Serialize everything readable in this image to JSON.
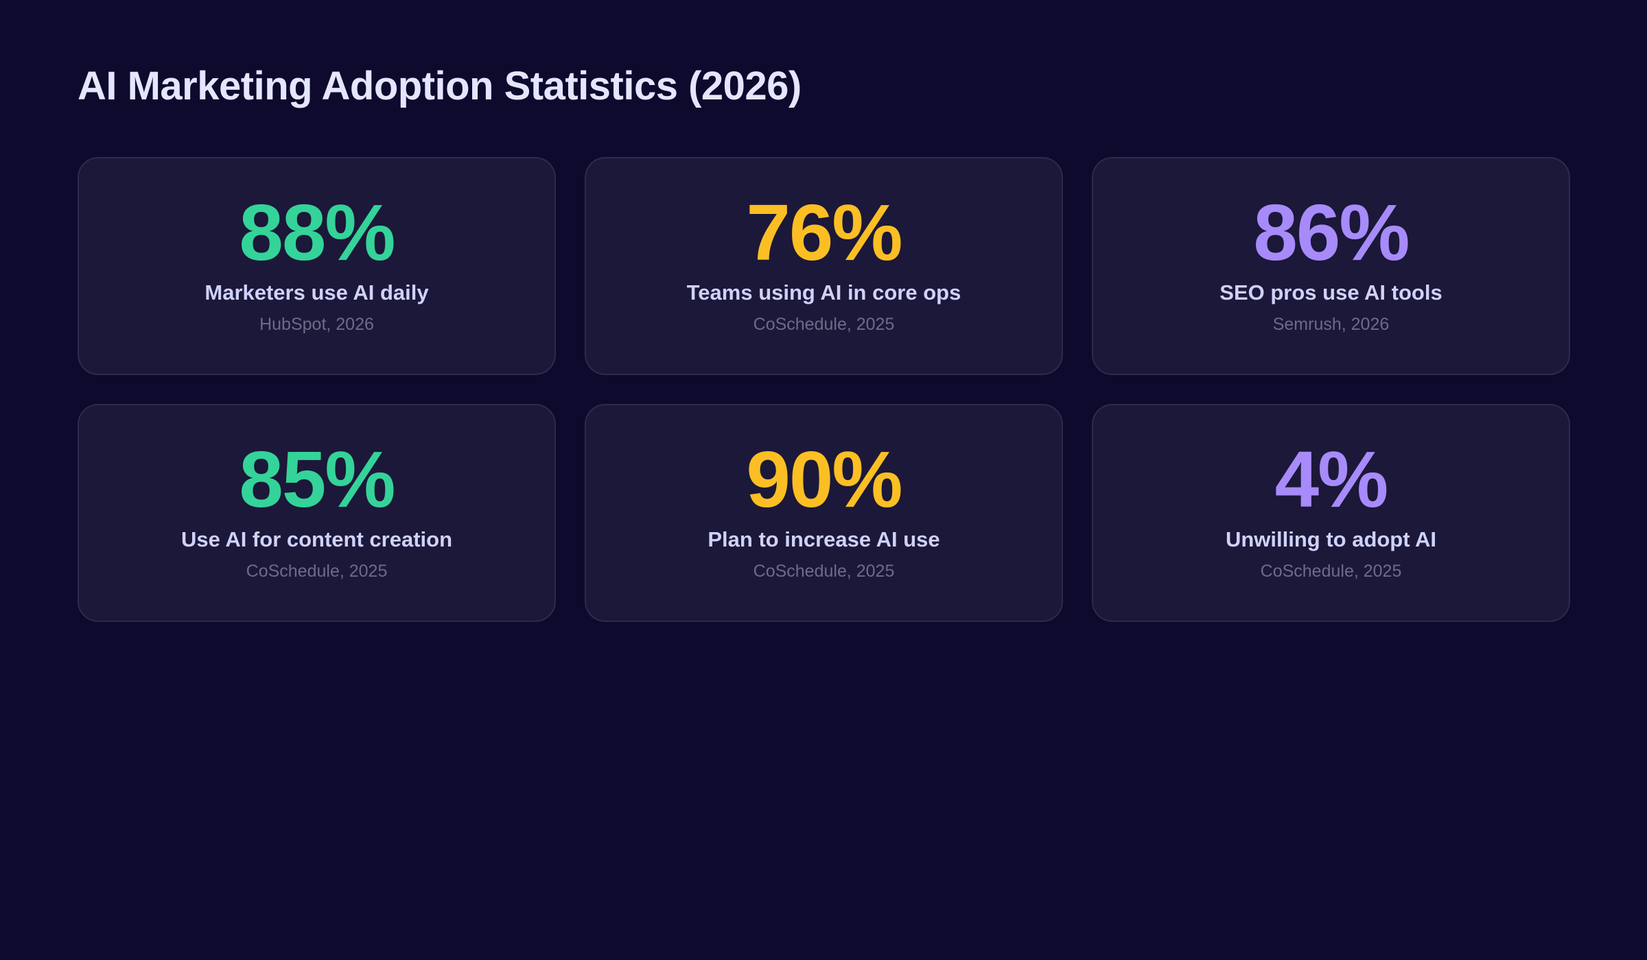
{
  "title": "AI Marketing Adoption Statistics (2026)",
  "colors": {
    "green": "#34d399",
    "yellow": "#fbbf24",
    "purple": "#a78bfa"
  },
  "cards": [
    {
      "value": "88%",
      "label": "Marketers use AI daily",
      "source": "HubSpot, 2026",
      "color": "green"
    },
    {
      "value": "76%",
      "label": "Teams using AI in core ops",
      "source": "CoSchedule, 2025",
      "color": "yellow"
    },
    {
      "value": "86%",
      "label": "SEO pros use AI tools",
      "source": "Semrush, 2026",
      "color": "purple"
    },
    {
      "value": "85%",
      "label": "Use AI for content creation",
      "source": "CoSchedule, 2025",
      "color": "green"
    },
    {
      "value": "90%",
      "label": "Plan to increase AI use",
      "source": "CoSchedule, 2025",
      "color": "yellow"
    },
    {
      "value": "4%",
      "label": "Unwilling to adopt AI",
      "source": "CoSchedule, 2025",
      "color": "purple"
    }
  ]
}
